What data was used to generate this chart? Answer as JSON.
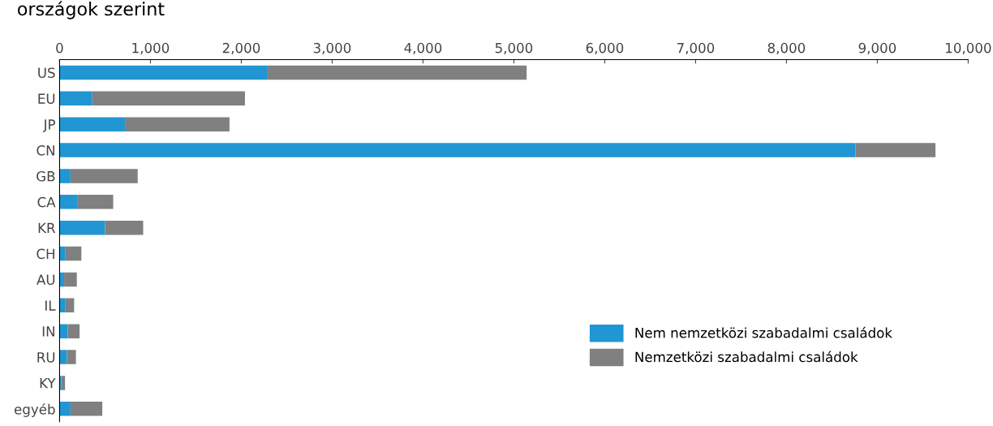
{
  "chart_data": {
    "type": "bar",
    "orientation": "horizontal",
    "stacked": true,
    "title": "országok szerint",
    "categories": [
      "US",
      "EU",
      "JP",
      "CN",
      "GB",
      "CA",
      "KR",
      "CH",
      "AU",
      "IL",
      "IN",
      "RU",
      "KY",
      "egyéb"
    ],
    "series": [
      {
        "name": "Nem nemzetközi szabadalmi családok",
        "color": "#2196d3",
        "values": [
          2290,
          360,
          720,
          8760,
          120,
          200,
          500,
          60,
          50,
          60,
          90,
          80,
          20,
          120
        ]
      },
      {
        "name": "Nemzetközi szabadalmi családok",
        "color": "#808080",
        "values": [
          2850,
          1680,
          1150,
          880,
          740,
          390,
          420,
          180,
          140,
          100,
          130,
          100,
          40,
          350
        ]
      }
    ],
    "xlim": [
      0,
      10000
    ],
    "xticks": [
      0,
      {
        "value": 1000,
        "label": "1,000"
      },
      {
        "value": 2000,
        "label": "2,000"
      },
      {
        "value": 3000,
        "label": "3,000"
      },
      {
        "value": 4000,
        "label": "4,000"
      },
      {
        "value": 5000,
        "label": "5,000"
      },
      {
        "value": 6000,
        "label": "6,000"
      },
      {
        "value": 7000,
        "label": "7,000"
      },
      {
        "value": 8000,
        "label": "8,000"
      },
      {
        "value": 9000,
        "label": "9,000"
      },
      {
        "value": 10000,
        "label": "10,000"
      }
    ],
    "grid": false,
    "legend": "bottom right"
  }
}
